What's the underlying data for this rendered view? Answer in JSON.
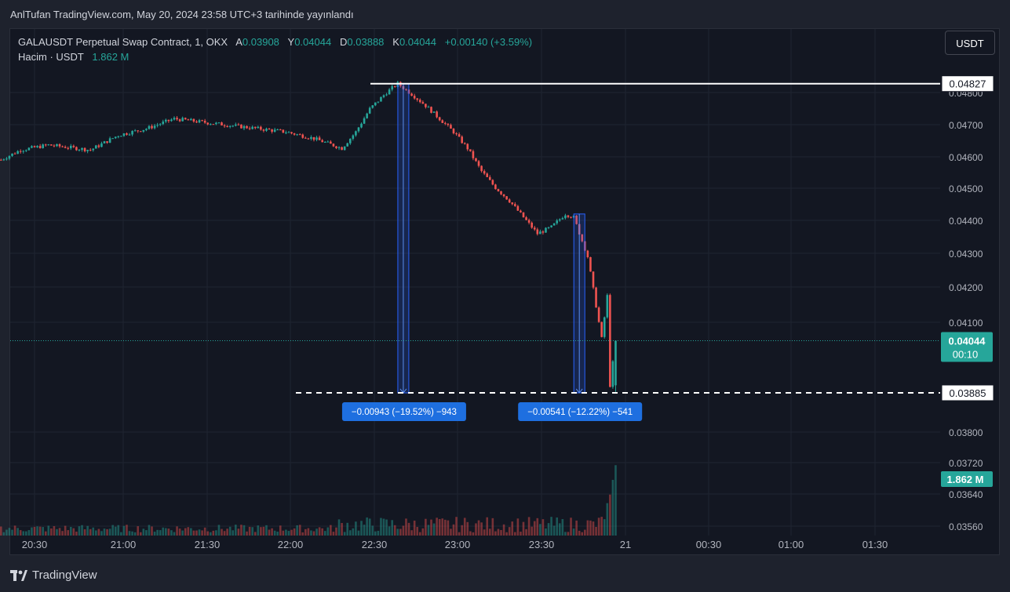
{
  "header": {
    "published_text": "AnlTufan TradingView.com, May 20, 2024 23:58 UTC+3 tarihinde yayınlandı"
  },
  "legend": {
    "symbol": "GALAUSDT Perpetual Swap Contract, 1, OKX",
    "open_label": "A",
    "open_value": "0.03908",
    "high_label": "Y",
    "high_value": "0.04044",
    "low_label": "D",
    "low_value": "0.03888",
    "close_label": "K",
    "close_value": "0.04044",
    "change": "+0.00140 (+3.59%)",
    "volume_label": "Hacim · USDT",
    "volume_value": "1.862 M"
  },
  "currency_button": "USDT",
  "footer": {
    "brand": "TradingView"
  },
  "colors": {
    "background": "#131722",
    "up": "#26a69a",
    "down": "#ef5350",
    "measure": "#2962ff",
    "label_bg": "#1e6fe0",
    "grid": "#1f2431"
  },
  "chart_data": {
    "type": "candlestick",
    "series_name": "GALAUSDT",
    "x_ticks": [
      "20:30",
      "21:00",
      "21:30",
      "22:00",
      "22:30",
      "23:00",
      "23:30",
      "21",
      "00:30",
      "01:00",
      "01:30"
    ],
    "y_ticks": [
      "0.04800",
      "0.04700",
      "0.04600",
      "0.04500",
      "0.04400",
      "0.04300",
      "0.04200",
      "0.04100",
      "0.03800",
      "0.03720",
      "0.03640",
      "0.03560"
    ],
    "price_path": [
      [
        "20:18",
        0.04595
      ],
      [
        "20:25",
        0.04625
      ],
      [
        "20:35",
        0.0464
      ],
      [
        "20:50",
        0.04625
      ],
      [
        "21:00",
        0.0467
      ],
      [
        "21:10",
        0.0469
      ],
      [
        "21:20",
        0.0472
      ],
      [
        "21:30",
        0.0471
      ],
      [
        "21:40",
        0.047
      ],
      [
        "21:50",
        0.0469
      ],
      [
        "22:00",
        0.0468
      ],
      [
        "22:10",
        0.0466
      ],
      [
        "22:20",
        0.0463
      ],
      [
        "22:25",
        0.0468
      ],
      [
        "22:30",
        0.0475
      ],
      [
        "22:36",
        0.048
      ],
      [
        "22:40",
        0.04827
      ],
      [
        "22:45",
        0.04795
      ],
      [
        "22:50",
        0.0476
      ],
      [
        "22:55",
        0.0472
      ],
      [
        "23:00",
        0.0468
      ],
      [
        "23:05",
        0.0463
      ],
      [
        "23:10",
        0.0456
      ],
      [
        "23:15",
        0.0451
      ],
      [
        "23:20",
        0.0447
      ],
      [
        "23:25",
        0.0442
      ],
      [
        "23:30",
        0.0437
      ],
      [
        "23:35",
        0.0439
      ],
      [
        "23:40",
        0.0443
      ],
      [
        "23:43",
        0.0442
      ],
      [
        "23:48",
        0.043
      ],
      [
        "23:51",
        0.0415
      ],
      [
        "23:53",
        0.0405
      ],
      [
        "23:55",
        0.0418
      ],
      [
        "23:56",
        0.03908
      ],
      [
        "23:58",
        0.04044
      ]
    ],
    "volume_peak": "1.862 M",
    "horizontal_lines": [
      {
        "price": 0.04827,
        "label": "0.04827",
        "style": "solid"
      },
      {
        "price": 0.03885,
        "label": "0.03885",
        "style": "dashed"
      }
    ],
    "last_price": {
      "price": 0.04044,
      "label": "0.04044",
      "countdown": "00:10"
    },
    "measurements": [
      {
        "from_time": "22:42",
        "from_price": 0.04827,
        "to_price": 0.03885,
        "label": "−0.00943 (−19.52%) −943"
      },
      {
        "from_time": "23:45",
        "from_price": 0.0443,
        "to_price": 0.03885,
        "label": "−0.00541 (−12.22%) −541"
      }
    ]
  }
}
